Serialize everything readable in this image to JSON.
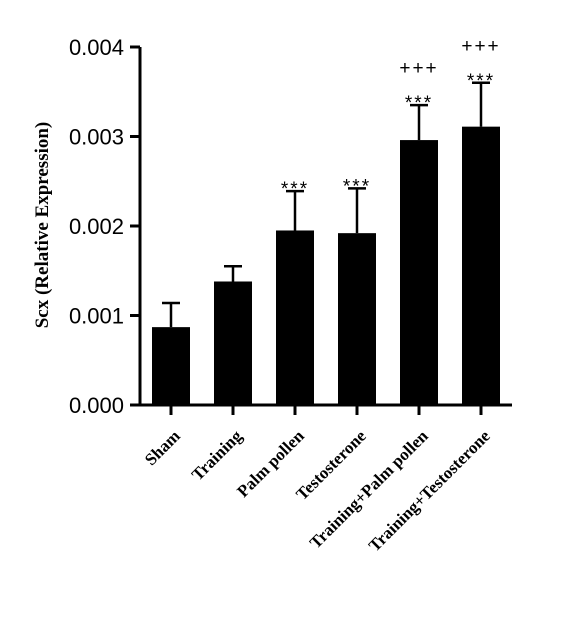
{
  "chart_data": {
    "type": "bar",
    "title": "",
    "xlabel": "",
    "ylabel": "Scx (Relative Expression)",
    "ylim": [
      0,
      0.004
    ],
    "yticks": [
      "0.000",
      "0.001",
      "0.002",
      "0.003",
      "0.004"
    ],
    "grid": false,
    "categories": [
      "Sham",
      "Training",
      "Palm pollen",
      "Testosterone",
      "Training+Palm pollen",
      "Training+Testosterone"
    ],
    "values": [
      0.00087,
      0.00138,
      0.00195,
      0.00192,
      0.00296,
      0.00311
    ],
    "error_upper": [
      0.00027,
      0.00017,
      0.00044,
      0.0005,
      0.00039,
      0.00049
    ],
    "annotations": [
      [],
      [],
      [
        "***"
      ],
      [
        "***"
      ],
      [
        "+++",
        "***"
      ],
      [
        "+++",
        "***"
      ]
    ],
    "colors": {
      "bar": "#000000",
      "axis": "#000000",
      "background": "#ffffff"
    }
  }
}
